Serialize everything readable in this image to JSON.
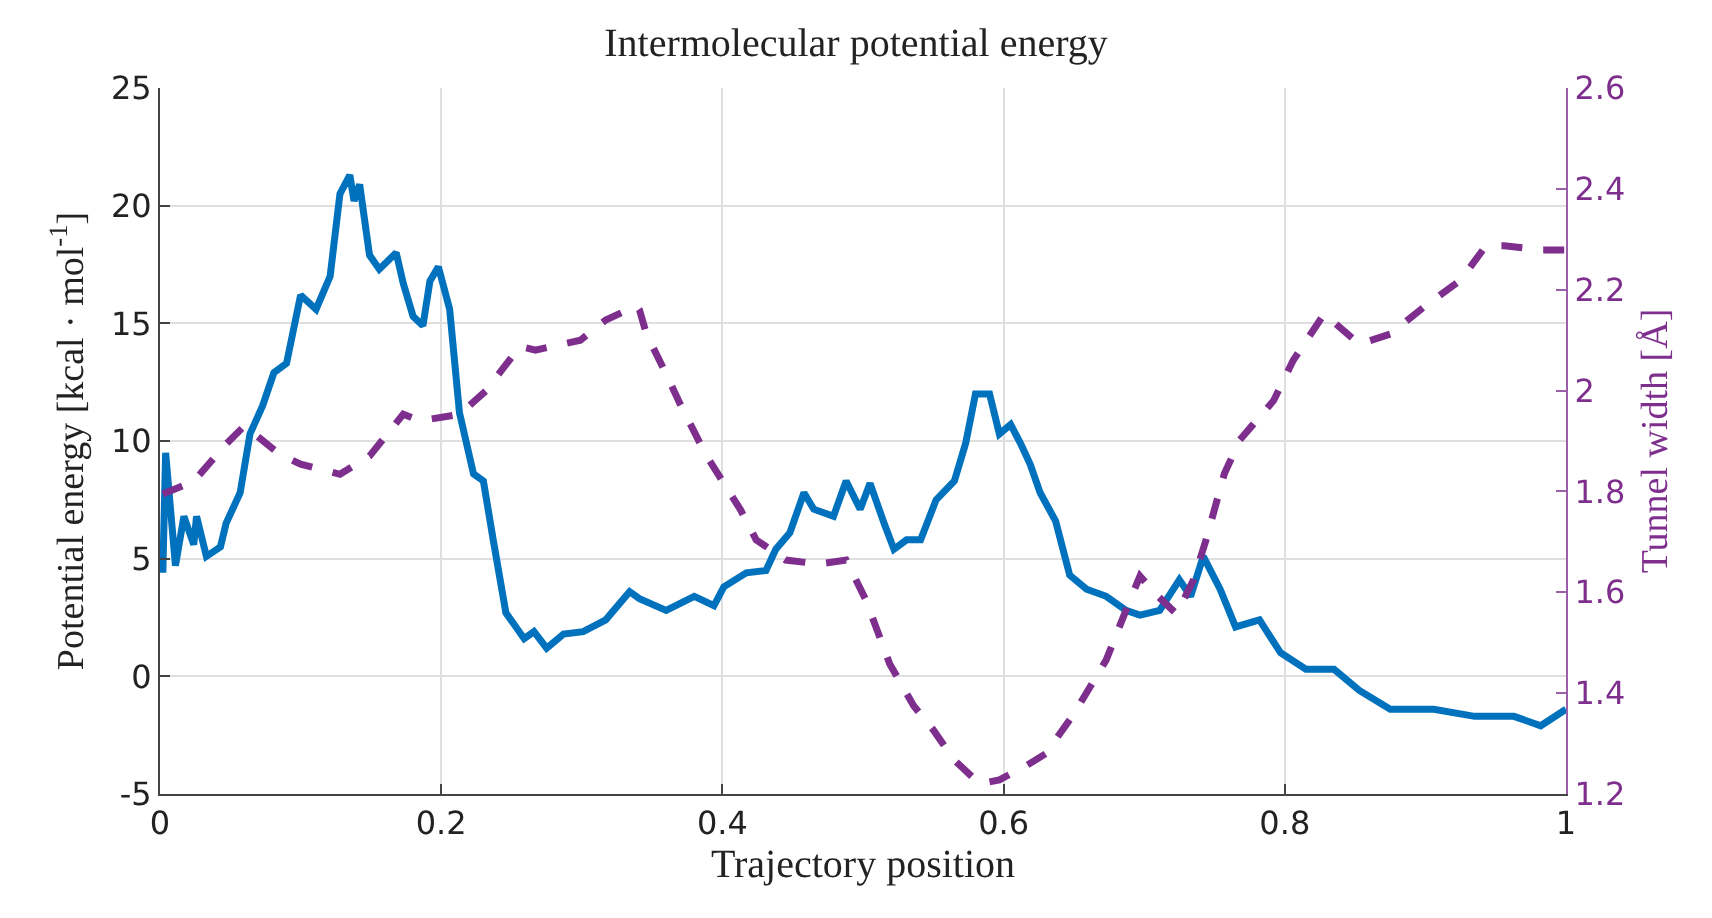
{
  "chart_data": {
    "type": "line",
    "title": "Intermolecular potential energy",
    "xlabel": "Trajectory position",
    "ylabel": "Potential energy [kcal · mol$^{-1}$]",
    "y2label": "Tunnel width [Å]",
    "xlim": [
      0,
      1
    ],
    "xticks": [
      0,
      0.2,
      0.4,
      0.6,
      0.8,
      1
    ],
    "ylim": [
      -5,
      25
    ],
    "yticks": [
      -5,
      0,
      5,
      10,
      15,
      20,
      25
    ],
    "y2lim": [
      1.2,
      2.6
    ],
    "y2ticks": [
      1.2,
      1.4,
      1.6,
      1.8,
      2,
      2.2,
      2.4,
      2.6
    ],
    "grid": true,
    "series": [
      {
        "color": "#0072bd",
        "line_style": "solid",
        "x": [
          0.002,
          0.004,
          0.011,
          0.017,
          0.024,
          0.026,
          0.033,
          0.043,
          0.047,
          0.057,
          0.064,
          0.073,
          0.081,
          0.09,
          0.1,
          0.111,
          0.121,
          0.128,
          0.135,
          0.138,
          0.142,
          0.149,
          0.156,
          0.168,
          0.173,
          0.18,
          0.187,
          0.192,
          0.198,
          0.206,
          0.213,
          0.223,
          0.23,
          0.237,
          0.246,
          0.259,
          0.266,
          0.275,
          0.287,
          0.301,
          0.317,
          0.334,
          0.341,
          0.36,
          0.38,
          0.394,
          0.401,
          0.417,
          0.431,
          0.438,
          0.448,
          0.458,
          0.465,
          0.479,
          0.488,
          0.498,
          0.505,
          0.515,
          0.522,
          0.531,
          0.541,
          0.552,
          0.565,
          0.573,
          0.58,
          0.59,
          0.597,
          0.605,
          0.612,
          0.619,
          0.626,
          0.637,
          0.647,
          0.659,
          0.673,
          0.687,
          0.697,
          0.711,
          0.725,
          0.733,
          0.742,
          0.754,
          0.765,
          0.782,
          0.797,
          0.815,
          0.835,
          0.853,
          0.875,
          0.906,
          0.935,
          0.963,
          0.982,
          1
        ],
        "values": [
          4.4,
          9.5,
          4.7,
          6.8,
          5.6,
          6.8,
          5.1,
          5.5,
          6.5,
          7.8,
          10.3,
          11.5,
          12.9,
          13.3,
          16.2,
          15.6,
          17,
          20.5,
          21.3,
          20.2,
          20.9,
          17.9,
          17.3,
          18,
          16.7,
          15.3,
          14.9,
          16.8,
          17.4,
          15.6,
          11.2,
          8.6,
          8.3,
          5.8,
          2.7,
          1.6,
          1.9,
          1.2,
          1.8,
          1.9,
          2.4,
          3.6,
          3.3,
          2.8,
          3.4,
          3,
          3.8,
          4.4,
          4.5,
          5.4,
          6.1,
          7.8,
          7.1,
          6.8,
          8.3,
          7.1,
          8.2,
          6.5,
          5.4,
          5.8,
          5.8,
          7.5,
          8.3,
          9.9,
          12,
          12,
          10.3,
          10.7,
          9.9,
          9,
          7.8,
          6.6,
          4.3,
          3.7,
          3.4,
          2.8,
          2.6,
          2.8,
          4.1,
          3.4,
          5.1,
          3.7,
          2.1,
          2.4,
          1,
          0.3,
          0.3,
          -0.6,
          -1.4,
          -1.4,
          -1.7,
          -1.7,
          -2.1,
          -1.4
        ]
      },
      {
        "color": "#7e2f8e",
        "line_style": "dashed",
        "axis": "y2",
        "x": [
          0.002,
          0.024,
          0.047,
          0.06,
          0.085,
          0.1,
          0.128,
          0.149,
          0.173,
          0.185,
          0.213,
          0.232,
          0.256,
          0.267,
          0.299,
          0.317,
          0.339,
          0.341,
          0.346,
          0.36,
          0.37,
          0.388,
          0.413,
          0.424,
          0.445,
          0.469,
          0.488,
          0.502,
          0.519,
          0.536,
          0.55,
          0.565,
          0.583,
          0.597,
          0.616,
          0.63,
          0.65,
          0.673,
          0.69,
          0.697,
          0.708,
          0.723,
          0.735,
          0.744,
          0.757,
          0.768,
          0.792,
          0.806,
          0.828,
          0.853,
          0.875,
          0.9,
          0.925,
          0.943,
          0.956,
          0.982,
          1
        ],
        "values": [
          1.795,
          1.82,
          1.894,
          1.93,
          1.874,
          1.854,
          1.834,
          1.87,
          1.953,
          1.94,
          1.953,
          2,
          2.088,
          2.08,
          2.1,
          2.14,
          2.168,
          2.16,
          2.112,
          2.033,
          1.973,
          1.874,
          1.763,
          1.704,
          1.664,
          1.656,
          1.664,
          1.585,
          1.458,
          1.375,
          1.327,
          1.267,
          1.22,
          1.228,
          1.256,
          1.28,
          1.359,
          1.466,
          1.585,
          1.632,
          1.597,
          1.557,
          1.624,
          1.704,
          1.835,
          1.902,
          1.98,
          2.06,
          2.152,
          2.092,
          2.112,
          2.168,
          2.219,
          2.287,
          2.287,
          2.279,
          2.279
        ]
      }
    ]
  }
}
